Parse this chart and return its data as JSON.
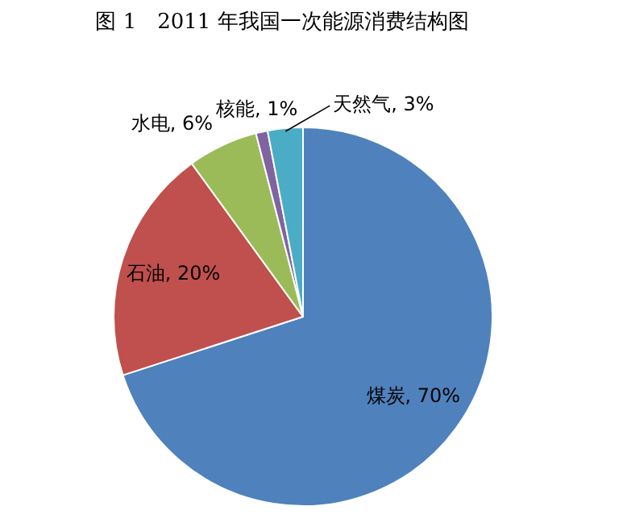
{
  "chart_data": {
    "type": "pie",
    "title": "图 1　2011 年我国一次能源消费结构图",
    "categories": [
      "煤炭",
      "石油",
      "水电",
      "核能",
      "天然气"
    ],
    "values": [
      70,
      20,
      6,
      1,
      3
    ],
    "colors": [
      "#4f81bd",
      "#c0504d",
      "#9bbb59",
      "#8064a2",
      "#4bacc6"
    ],
    "value_labels": [
      "70%",
      "20%",
      "6%",
      "1%",
      "3%"
    ],
    "legend": false
  }
}
